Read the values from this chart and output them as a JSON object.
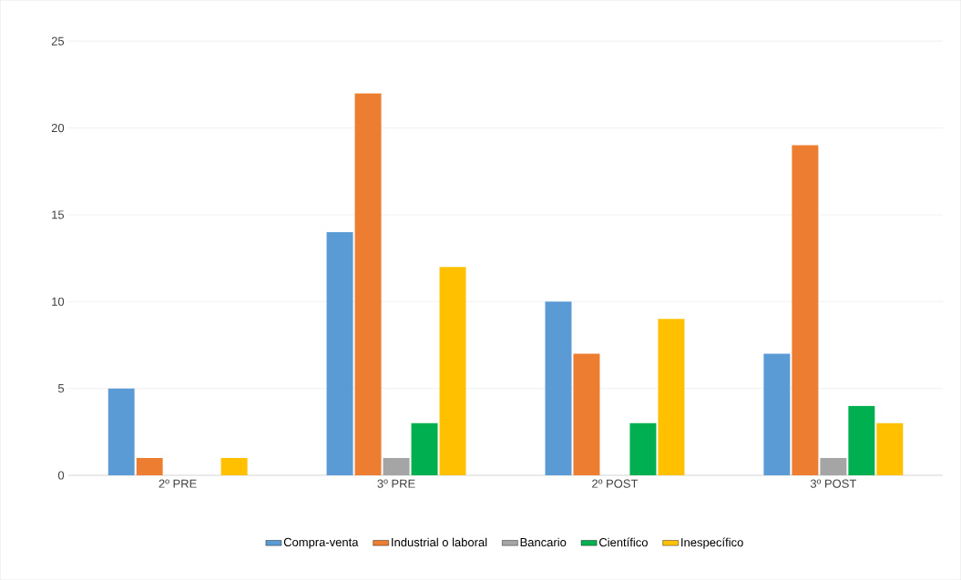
{
  "chart_data": {
    "type": "bar",
    "categories": [
      "2º PRE",
      "3º PRE",
      "2º POST",
      "3º POST"
    ],
    "series": [
      {
        "name": "Compra-venta",
        "color": "#5b9bd5",
        "values": [
          5,
          14,
          10,
          7
        ]
      },
      {
        "name": "Industrial o laboral",
        "color": "#ed7d31",
        "values": [
          1,
          22,
          7,
          19
        ]
      },
      {
        "name": "Bancario",
        "color": "#a5a5a5",
        "values": [
          0,
          1,
          0,
          1
        ]
      },
      {
        "name": "Científico",
        "color": "#00b050",
        "values": [
          0,
          3,
          3,
          4
        ]
      },
      {
        "name": "Inespecífico",
        "color": "#ffc000",
        "values": [
          1,
          12,
          9,
          3
        ]
      }
    ],
    "ylim": [
      0,
      25
    ],
    "yticks": [
      0,
      5,
      10,
      15,
      20,
      25
    ],
    "grid": "y",
    "legend": "bottom"
  }
}
